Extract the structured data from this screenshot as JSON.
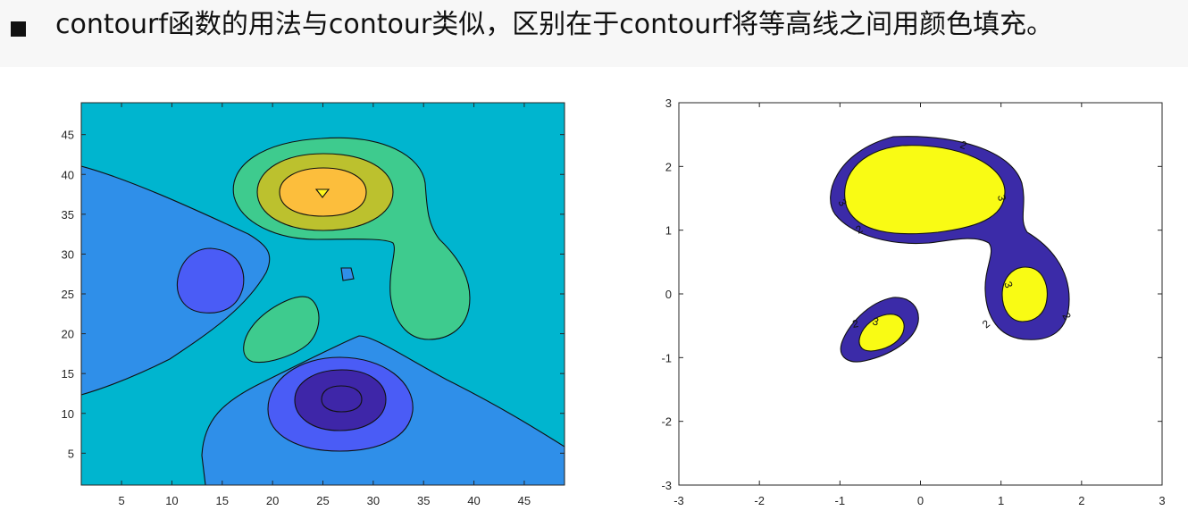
{
  "header": {
    "bullet_icon": "black-square-bullet-icon",
    "text": "contourf函数的用法与contour类似，区别在于contourf将等高线之间用颜色填充。"
  },
  "chart_data": [
    {
      "type": "filled-contour",
      "title": "",
      "xlabel": "",
      "ylabel": "",
      "xlim": [
        1,
        49
      ],
      "ylim": [
        1,
        49
      ],
      "xticks": [
        "5",
        "10",
        "15",
        "20",
        "25",
        "30",
        "35",
        "40",
        "45"
      ],
      "yticks": [
        "5",
        "10",
        "15",
        "20",
        "25",
        "30",
        "35",
        "40",
        "45"
      ],
      "grid": false,
      "colors": {
        "lowest": "#3e26a8",
        "level_2": "#4a5cf6",
        "level_3": "#2f8fe9",
        "background": "#00b5cf",
        "level_5": "#3ecb8e",
        "level_6": "#bcc12e",
        "level_7": "#fcbe3c",
        "highest": "#fff71e"
      },
      "features": [
        {
          "kind": "peak",
          "x": 25,
          "y": 38
        },
        {
          "kind": "trough",
          "x": 27,
          "y": 12
        },
        {
          "kind": "trough",
          "x": 14,
          "y": 26.5
        }
      ]
    },
    {
      "type": "filled-contour",
      "title": "",
      "xlabel": "",
      "ylabel": "",
      "xlim": [
        -3,
        3
      ],
      "ylim": [
        -3,
        3
      ],
      "xticks": [
        "-3",
        "-2",
        "-1",
        "0",
        "1",
        "2",
        "3"
      ],
      "yticks": [
        "-3",
        "-2",
        "-1",
        "0",
        "1",
        "2",
        "3"
      ],
      "grid": false,
      "levels": [
        2,
        3
      ],
      "contour_labels": [
        "2",
        "3",
        "3",
        "2",
        "3",
        "2",
        "2",
        "3",
        "2"
      ],
      "colors": {
        "band_2_3": "#3b2ba8",
        "above_3": "#f9fb14",
        "below_2": "#ffffff"
      }
    }
  ]
}
